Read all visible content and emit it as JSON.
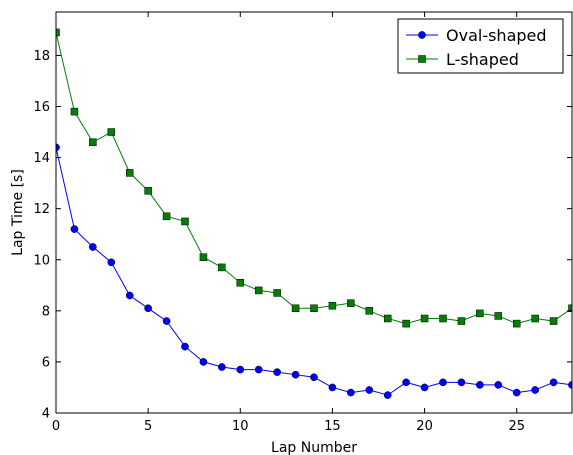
{
  "chart_data": {
    "type": "line",
    "xlabel": "Lap Number",
    "ylabel": "Lap Time [s]",
    "xlim": [
      0,
      28
    ],
    "ylim": [
      4,
      19.7
    ],
    "xticks": [
      0,
      5,
      10,
      15,
      20,
      25
    ],
    "yticks": [
      4,
      6,
      8,
      10,
      12,
      14,
      16,
      18
    ],
    "grid": false,
    "legend_position": "top-right",
    "x": [
      0,
      1,
      2,
      3,
      4,
      5,
      6,
      7,
      8,
      9,
      10,
      11,
      12,
      13,
      14,
      15,
      16,
      17,
      18,
      19,
      20,
      21,
      22,
      23,
      24,
      25,
      26,
      27,
      28
    ],
    "series": [
      {
        "name": "Oval-shaped",
        "color": "#0000ff",
        "marker": "circle",
        "values": [
          14.4,
          11.2,
          10.5,
          9.9,
          8.6,
          8.1,
          7.6,
          6.6,
          6.0,
          5.8,
          5.7,
          5.7,
          5.6,
          5.5,
          5.4,
          5.0,
          4.8,
          4.9,
          4.7,
          5.2,
          5.0,
          5.2,
          5.2,
          5.1,
          5.1,
          4.8,
          4.9,
          5.2,
          5.1
        ]
      },
      {
        "name": "L-shaped",
        "color": "#007f00",
        "marker": "square",
        "values": [
          18.9,
          15.8,
          14.6,
          15.0,
          13.4,
          12.7,
          11.7,
          11.5,
          10.1,
          9.7,
          9.1,
          8.8,
          8.7,
          8.1,
          8.1,
          8.2,
          8.3,
          8.0,
          7.7,
          7.5,
          7.7,
          7.7,
          7.6,
          7.9,
          7.8,
          7.5,
          7.7,
          7.6,
          8.1
        ]
      }
    ]
  }
}
